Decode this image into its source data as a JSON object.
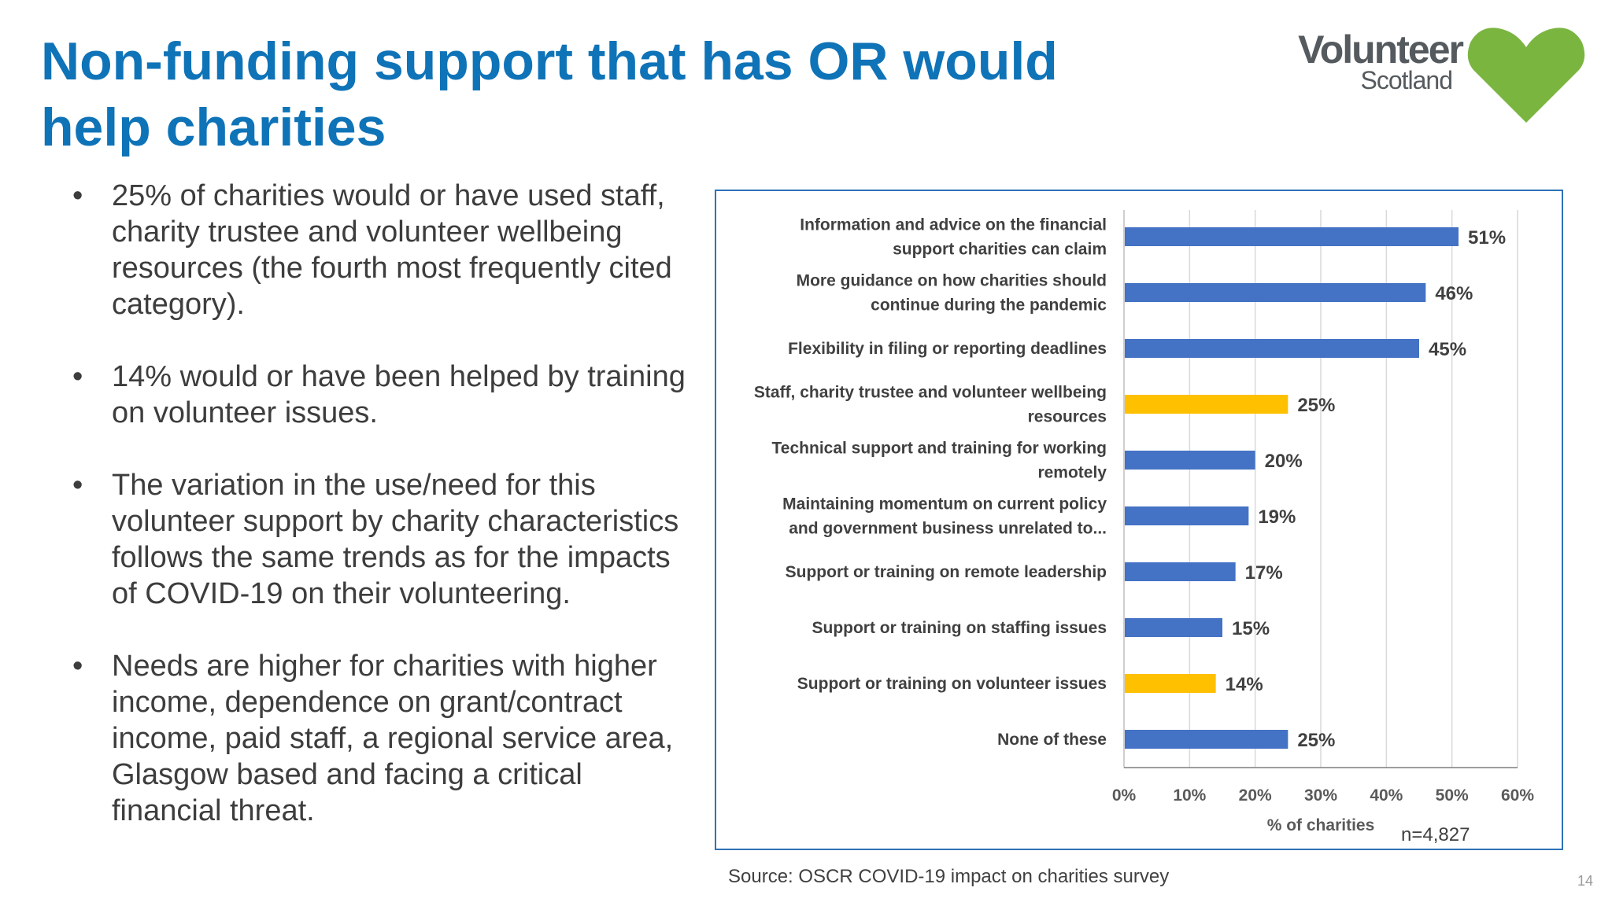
{
  "slide": {
    "title": "Non-funding support that has OR would help charities",
    "page_number": "14",
    "source": "Source: OSCR COVID-19 impact on charities survey",
    "sample_size": "n=4,827"
  },
  "logo": {
    "line1": "Volunteer",
    "line2": "Scotland",
    "heart_color": "#7ab540"
  },
  "bullets": [
    "25% of charities would or have used staff, charity trustee and volunteer wellbeing resources (the fourth most frequently cited category).",
    "14% would or have been helped by training on volunteer issues.",
    "The variation in the use/need for this volunteer support by charity characteristics follows the same trends as for the impacts of COVID-19 on their volunteering.",
    "Needs are higher for charities with higher income, dependence on grant/contract income, paid staff, a regional service area, Glasgow based and facing a critical financial threat."
  ],
  "colors": {
    "title": "#0f73b8",
    "bar_default": "#4472c4",
    "bar_highlight": "#ffc000",
    "chart_border": "#2e72b6"
  },
  "chart_data": {
    "type": "bar",
    "orientation": "horizontal",
    "categories": [
      [
        "Information and advice on the financial",
        "support charities can claim"
      ],
      [
        "More guidance on how charities should",
        "continue during the pandemic"
      ],
      [
        "Flexibility in filing or reporting deadlines"
      ],
      [
        "Staff, charity trustee and volunteer wellbeing",
        "resources"
      ],
      [
        "Technical support and training for working",
        "remotely"
      ],
      [
        "Maintaining momentum on current policy",
        "and government business unrelated to..."
      ],
      [
        "Support or training on remote leadership"
      ],
      [
        "Support or training on staffing issues"
      ],
      [
        "Support or training on volunteer issues"
      ],
      [
        "None of these"
      ]
    ],
    "values": [
      51,
      46,
      45,
      25,
      20,
      19,
      17,
      15,
      14,
      25
    ],
    "data_labels": [
      "51%",
      "46%",
      "45%",
      "25%",
      "20%",
      "19%",
      "17%",
      "15%",
      "14%",
      "25%"
    ],
    "highlighted": [
      false,
      false,
      false,
      true,
      false,
      false,
      false,
      false,
      true,
      false
    ],
    "xlabel": "% of charities",
    "xlim": [
      0,
      60
    ],
    "xticks": [
      0,
      10,
      20,
      30,
      40,
      50,
      60
    ],
    "xtick_labels": [
      "0%",
      "10%",
      "20%",
      "30%",
      "40%",
      "50%",
      "60%"
    ],
    "grid": true
  }
}
